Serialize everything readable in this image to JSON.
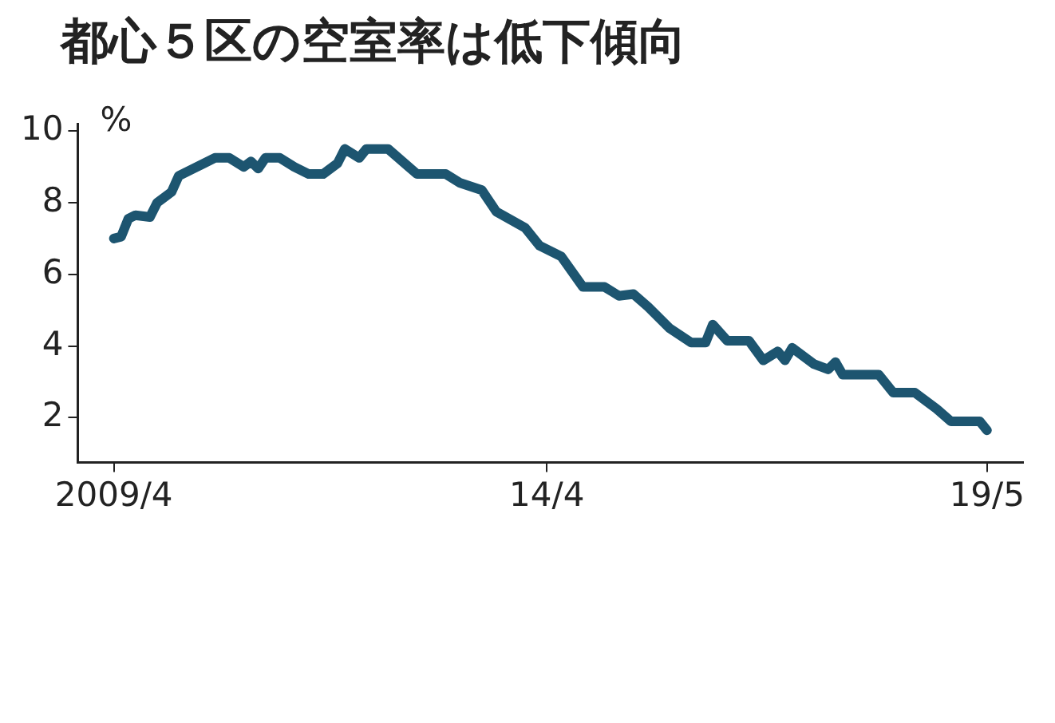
{
  "chart_data": {
    "type": "line",
    "title": "都心５区の空室率は低下傾向",
    "ylabel": "%",
    "color": "#1d5570",
    "marker": "none",
    "legend": false,
    "grid": false,
    "x": [
      "2009-04",
      "2009-05",
      "2009-06",
      "2009-07",
      "2009-09",
      "2009-10",
      "2009-12",
      "2010-01",
      "2010-03",
      "2010-06",
      "2010-08",
      "2010-10",
      "2010-11",
      "2010-12",
      "2011-01",
      "2011-03",
      "2011-05",
      "2011-07",
      "2011-09",
      "2011-11",
      "2011-12",
      "2012-02",
      "2012-03",
      "2012-06",
      "2012-10",
      "2013-02",
      "2013-04",
      "2013-07",
      "2013-09",
      "2014-01",
      "2014-03",
      "2014-06",
      "2014-09",
      "2014-12",
      "2015-02",
      "2015-04",
      "2015-06",
      "2015-09",
      "2015-12",
      "2016-02",
      "2016-03",
      "2016-05",
      "2016-08",
      "2016-10",
      "2016-12",
      "2017-01",
      "2017-02",
      "2017-05",
      "2017-07",
      "2017-08",
      "2017-09",
      "2018-02",
      "2018-04",
      "2018-07",
      "2018-10",
      "2018-12",
      "2019-04",
      "2019-05"
    ],
    "values": [
      7.0,
      7.05,
      7.55,
      7.65,
      7.6,
      8.0,
      8.3,
      8.75,
      8.95,
      9.25,
      9.25,
      9.0,
      9.15,
      8.95,
      9.25,
      9.25,
      9.0,
      8.8,
      8.8,
      9.1,
      9.5,
      9.25,
      9.5,
      9.5,
      8.8,
      8.8,
      8.55,
      8.35,
      7.75,
      7.3,
      6.8,
      6.5,
      5.65,
      5.65,
      5.4,
      5.45,
      5.1,
      4.5,
      4.1,
      4.1,
      4.6,
      4.15,
      4.15,
      3.6,
      3.85,
      3.6,
      3.95,
      3.5,
      3.35,
      3.55,
      3.2,
      3.2,
      2.7,
      2.7,
      2.25,
      1.9,
      1.9,
      1.65
    ],
    "xlim": [
      "2008-11",
      "2019-10"
    ],
    "xticks": [
      {
        "value": "2009-04",
        "label": "2009/4"
      },
      {
        "value": "2014-04",
        "label": "14/4"
      },
      {
        "value": "2019-05",
        "label": "19/5"
      }
    ],
    "ylim": [
      0.75,
      10.2
    ],
    "yticks": [
      2,
      4,
      6,
      8,
      10
    ]
  }
}
